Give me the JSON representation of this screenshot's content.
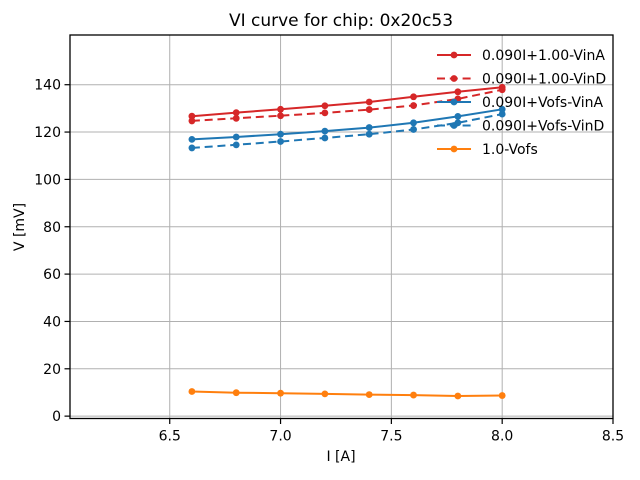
{
  "figure": {
    "background": "#ffffff",
    "text_color": "#000000",
    "spine_color": "#000000",
    "grid_color": "#b0b0b0"
  },
  "chart_data": {
    "type": "line",
    "title": "VI curve for chip: 0x20c53",
    "xlabel": "I [A]",
    "ylabel": "V [mV]",
    "xlim": [
      6.05,
      8.5
    ],
    "ylim": [
      -1,
      161
    ],
    "xticks": [
      "6.5",
      "7.0",
      "7.5",
      "8.0",
      "8.5"
    ],
    "yticks": [
      "0",
      "20",
      "40",
      "60",
      "80",
      "100",
      "120",
      "140"
    ],
    "grid": true,
    "legend_position": "upper right",
    "legend_frame": false,
    "x": [
      6.6,
      6.8,
      7.0,
      7.2,
      7.4,
      7.6,
      7.8,
      8.0
    ],
    "series": [
      {
        "name": "0.090I+1.00-VinA",
        "color": "#d62728",
        "style": "solid",
        "marker": "circle",
        "values": [
          126.7,
          128.2,
          129.6,
          131.1,
          132.7,
          134.9,
          137.0,
          138.9
        ]
      },
      {
        "name": "0.090I+1.00-VinD",
        "color": "#d62728",
        "style": "dashed",
        "marker": "circle",
        "values": [
          124.7,
          125.8,
          126.9,
          128.1,
          129.5,
          131.2,
          134.0,
          137.9
        ]
      },
      {
        "name": "0.090I+Vofs-VinA",
        "color": "#1f77b4",
        "style": "solid",
        "marker": "circle",
        "values": [
          116.9,
          117.9,
          119.1,
          120.4,
          121.9,
          123.9,
          126.6,
          129.6
        ]
      },
      {
        "name": "0.090I+Vofs-VinD",
        "color": "#1f77b4",
        "style": "dashed",
        "marker": "circle",
        "values": [
          113.3,
          114.6,
          116.0,
          117.5,
          119.1,
          121.1,
          123.9,
          127.6
        ]
      },
      {
        "name": "1.0-Vofs",
        "color": "#ff7f0e",
        "style": "solid",
        "marker": "circle",
        "values": [
          10.4,
          9.9,
          9.7,
          9.4,
          9.1,
          8.9,
          8.5,
          8.7
        ]
      }
    ]
  }
}
